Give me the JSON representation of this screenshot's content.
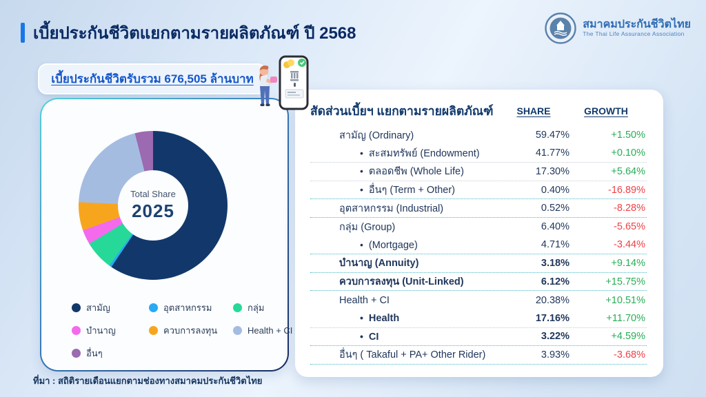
{
  "header": {
    "title": "เบี้ยประกันชีวิตแยกตามรายผลิตภัณฑ์ ปี 2568",
    "logo": {
      "name_th": "สมาคมประกันชีวิตไทย",
      "name_en": "The Thai Life Assurance Association"
    }
  },
  "summary": {
    "text": "เบี้ยประกันชีวิตรับรวม 676,505 ล้านบาท"
  },
  "chart_data": {
    "type": "pie",
    "style": "donut",
    "center_label": "Total Share",
    "center_year": "2025",
    "unit": "%",
    "series": [
      {
        "label": "สามัญ",
        "value": 59.47,
        "color": "#12386b"
      },
      {
        "label": "อุตสาหกรรม",
        "value": 0.52,
        "color": "#2aa9f5"
      },
      {
        "label": "กลุ่ม",
        "value": 6.4,
        "color": "#27d998"
      },
      {
        "label": "บำนาญ",
        "value": 3.18,
        "color": "#f46aec"
      },
      {
        "label": "ควบการลงทุน",
        "value": 6.12,
        "color": "#f8a51e"
      },
      {
        "label": "Health + CI",
        "value": 20.38,
        "color": "#a5bce1"
      },
      {
        "label": "อื่นๆ",
        "value": 3.93,
        "color": "#9c6ab0"
      }
    ],
    "legend_position": "bottom"
  },
  "table": {
    "title": "สัดส่วนเบี้ยฯ แยกตามรายผลิตภัณฑ์",
    "share_header": "SHARE",
    "growth_header": "GROWTH",
    "rows": [
      {
        "label": "สามัญ (Ordinary)",
        "share": "59.47%",
        "growth": "+1.50%",
        "swatch": "#12386b",
        "indent": false,
        "bold": false,
        "sep": "none"
      },
      {
        "label": "สะสมทรัพย์ (Endowment)",
        "share": "41.77%",
        "growth": "+0.10%",
        "swatch": null,
        "indent": true,
        "bold": false,
        "sep": "light"
      },
      {
        "label": "ตลอดชีพ (Whole Life)",
        "share": "17.30%",
        "growth": "+5.64%",
        "swatch": null,
        "indent": true,
        "bold": false,
        "sep": "light"
      },
      {
        "label": "อื่นๆ (Term + Other)",
        "share": "0.40%",
        "growth": "-16.89%",
        "swatch": null,
        "indent": true,
        "bold": false,
        "sep": "teal"
      },
      {
        "label": "อุตสาหกรรม (Industrial)",
        "share": "0.52%",
        "growth": "-8.28%",
        "swatch": "#2aa9f5",
        "indent": false,
        "bold": false,
        "sep": "teal"
      },
      {
        "label": "กลุ่ม (Group)",
        "share": "6.40%",
        "growth": "-5.65%",
        "swatch": "#27d998",
        "indent": false,
        "bold": false,
        "sep": "none"
      },
      {
        "label": "(Mortgage)",
        "share": "4.71%",
        "growth": "-3.44%",
        "swatch": null,
        "indent": true,
        "bold": false,
        "sep": "teal"
      },
      {
        "label": "บำนาญ  (Annuity)",
        "share": "3.18%",
        "growth": "+9.14%",
        "swatch": "#f46aec",
        "indent": false,
        "bold": true,
        "sep": "teal"
      },
      {
        "label": "ควบการลงทุน (Unit-Linked)",
        "share": "6.12%",
        "growth": "+15.75%",
        "swatch": "#f8a51e",
        "indent": false,
        "bold": true,
        "sep": "teal"
      },
      {
        "label": "Health + CI",
        "share": "20.38%",
        "growth": "+10.51%",
        "swatch": "#a5bce1",
        "indent": false,
        "bold": false,
        "sep": "none"
      },
      {
        "label": "Health",
        "share": "17.16%",
        "growth": "+11.70%",
        "swatch": null,
        "indent": true,
        "bold": true,
        "sep": "light"
      },
      {
        "label": "CI",
        "share": "3.22%",
        "growth": "+4.59%",
        "swatch": null,
        "indent": true,
        "bold": true,
        "sep": "teal"
      },
      {
        "label": "อื่นๆ ( Takaful + PA+ Other Rider)",
        "share": "3.93%",
        "growth": "-3.68%",
        "swatch": "#9c6ab0",
        "indent": false,
        "bold": false,
        "sep": "teal"
      }
    ]
  },
  "footer": {
    "source": "ที่มา : สถิติรายเดือนแยกตามช่องทางสมาคมประกันชีวิตไทย"
  },
  "colors": {
    "accent_bar": "#1876e8",
    "title": "#0a2a63",
    "summary_text": "#1557c9",
    "growth_positive": "#27ae55",
    "growth_negative": "#ee4146",
    "separator_teal": "#3fb9c9",
    "separator_light": "#c4ccd6"
  }
}
